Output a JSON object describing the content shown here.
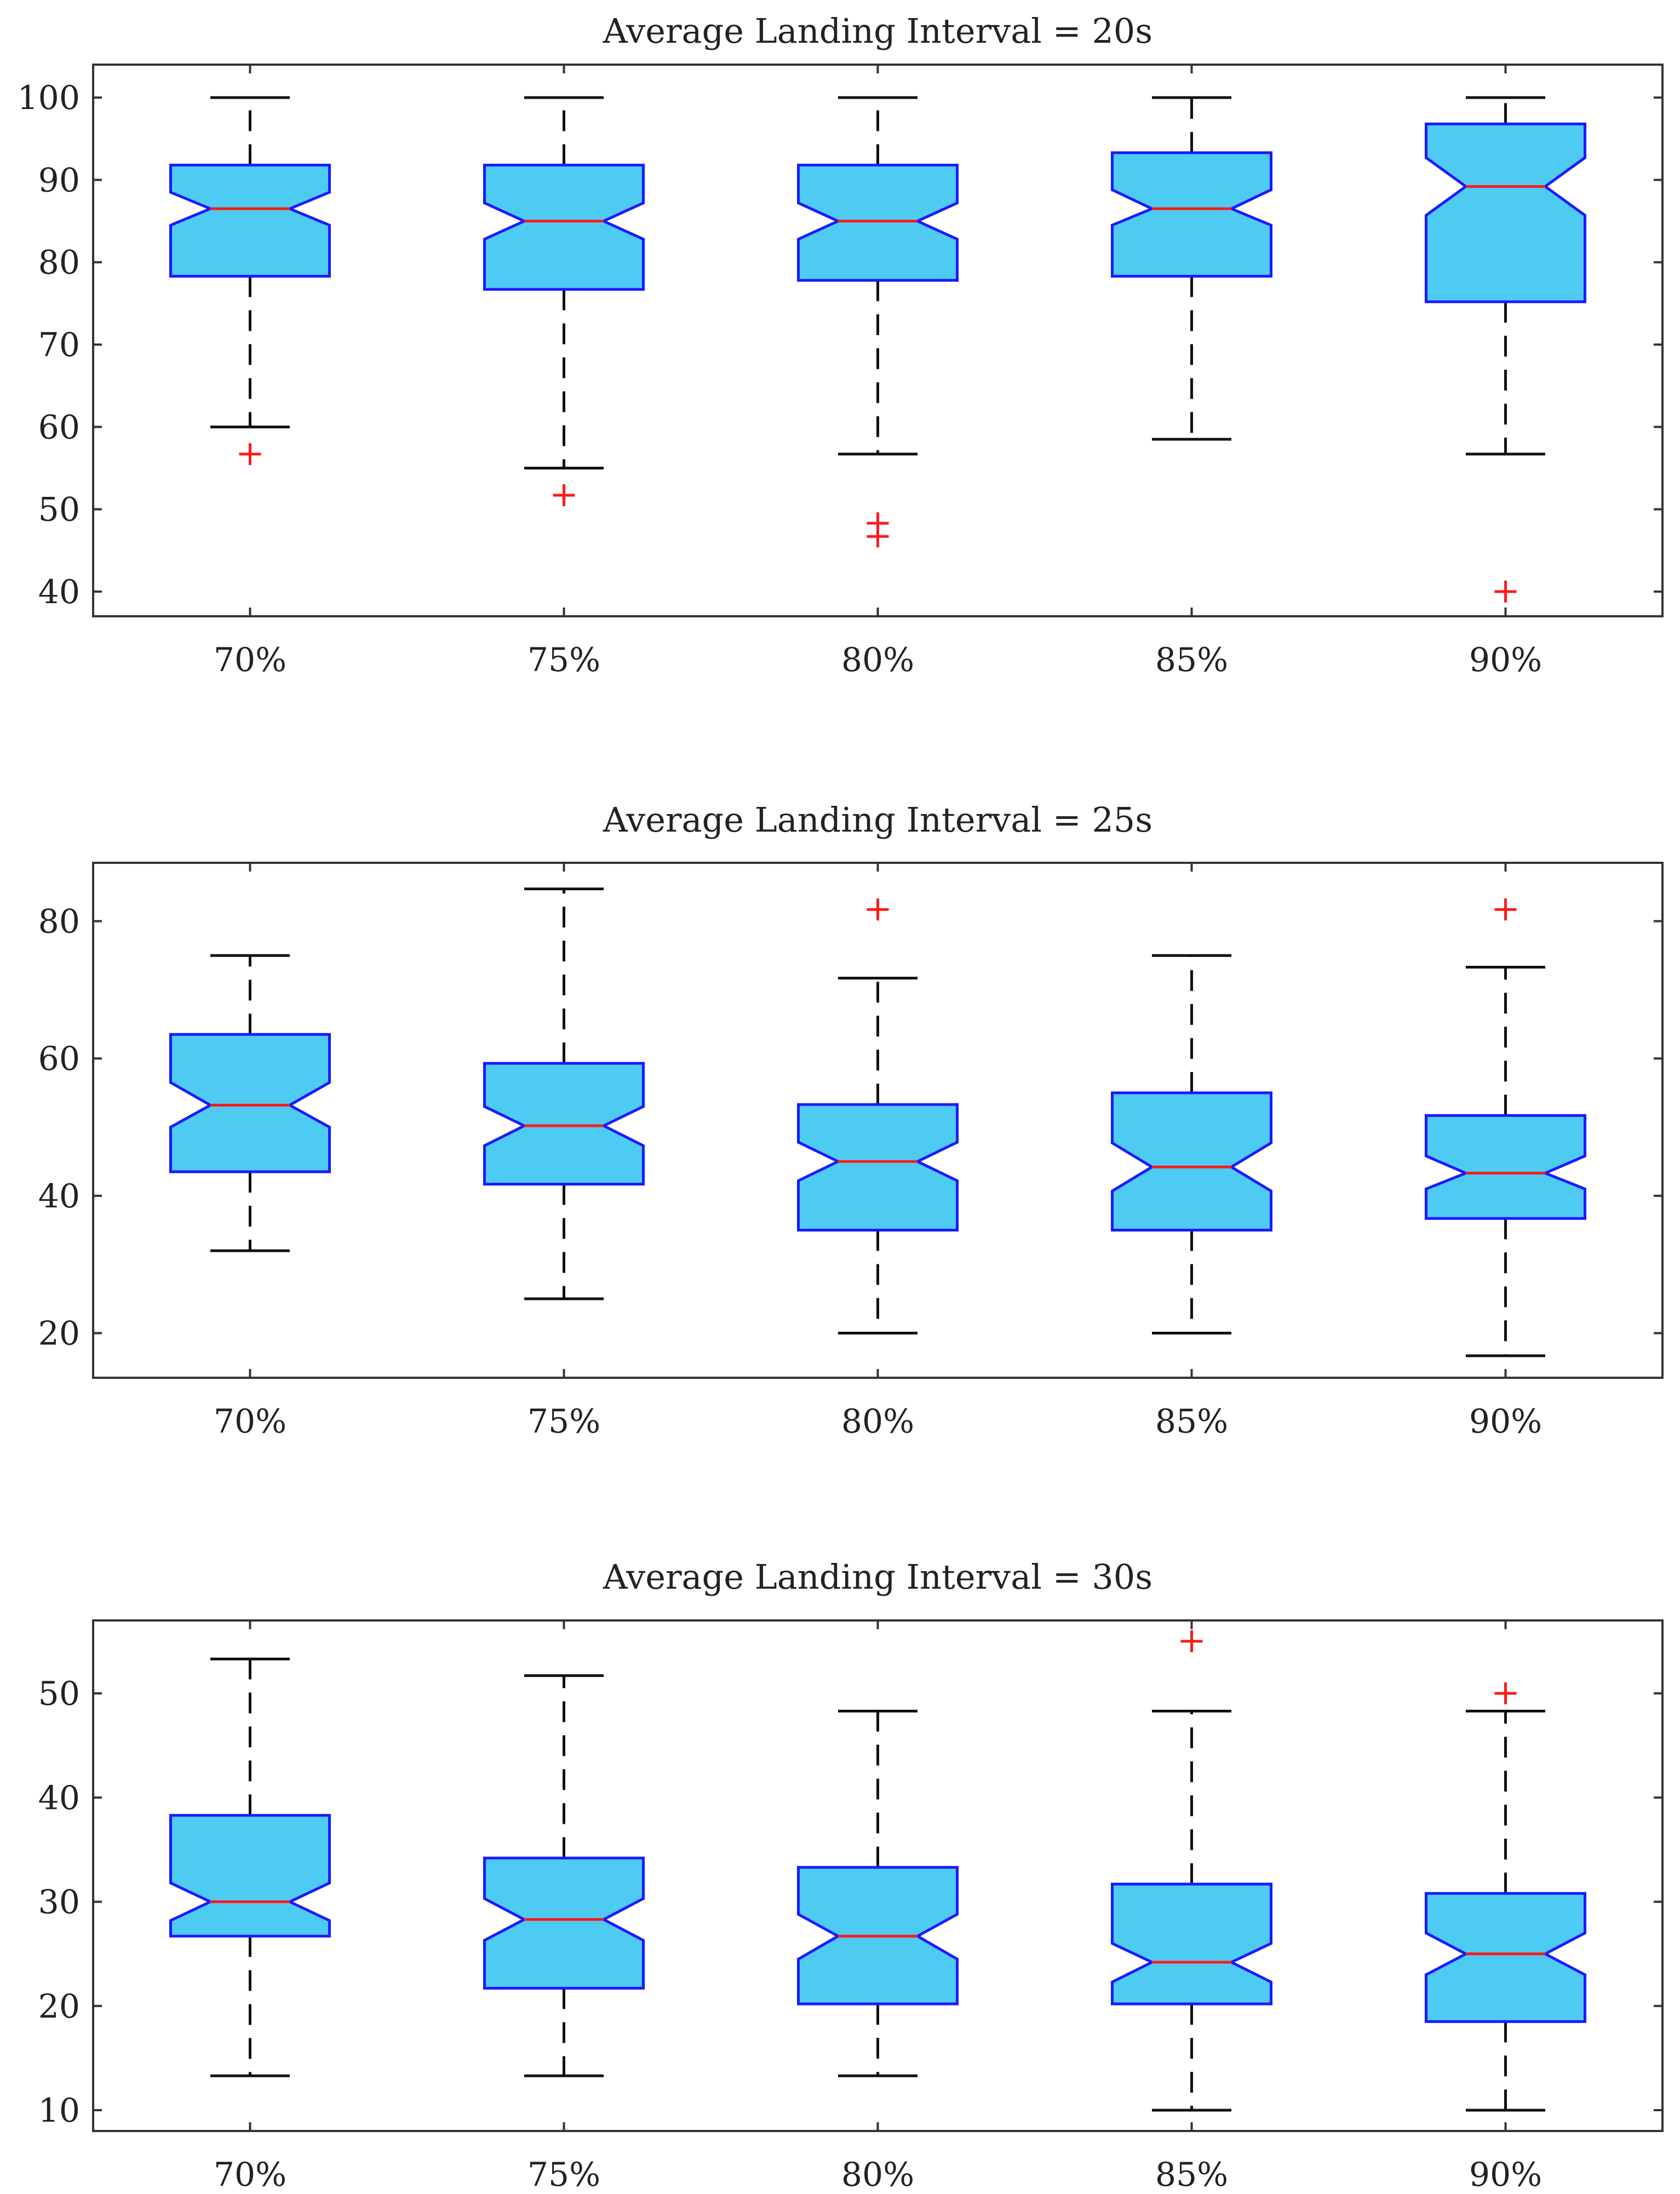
{
  "chart_data": [
    {
      "type": "boxplot",
      "title": "Average Landing Interval = 20s",
      "categories": [
        "70%",
        "75%",
        "80%",
        "85%",
        "90%"
      ],
      "yticks": [
        40,
        50,
        60,
        70,
        80,
        90,
        100
      ],
      "ylim": [
        37,
        104
      ],
      "boxes": [
        {
          "category": "70%",
          "whisker_low": 60,
          "q1": 78.3,
          "median": 86.5,
          "q3": 91.8,
          "whisker_high": 100,
          "notch_low": 84.5,
          "notch_high": 88.5,
          "outliers": [
            56.7
          ]
        },
        {
          "category": "75%",
          "whisker_low": 55,
          "q1": 76.7,
          "median": 85.0,
          "q3": 91.8,
          "whisker_high": 100,
          "notch_low": 82.8,
          "notch_high": 87.2,
          "outliers": [
            51.7
          ]
        },
        {
          "category": "80%",
          "whisker_low": 56.7,
          "q1": 77.8,
          "median": 85.0,
          "q3": 91.8,
          "whisker_high": 100,
          "notch_low": 82.8,
          "notch_high": 87.2,
          "outliers": [
            48.3,
            46.7
          ]
        },
        {
          "category": "85%",
          "whisker_low": 58.5,
          "q1": 78.3,
          "median": 86.5,
          "q3": 93.3,
          "whisker_high": 100,
          "notch_low": 84.5,
          "notch_high": 88.8,
          "outliers": []
        },
        {
          "category": "90%",
          "whisker_low": 56.7,
          "q1": 75.2,
          "median": 89.2,
          "q3": 96.8,
          "whisker_high": 100,
          "notch_low": 85.7,
          "notch_high": 92.7,
          "outliers": [
            40
          ]
        }
      ]
    },
    {
      "type": "boxplot",
      "title": "Average Landing Interval = 25s",
      "categories": [
        "70%",
        "75%",
        "80%",
        "85%",
        "90%"
      ],
      "yticks": [
        20,
        40,
        60,
        80
      ],
      "ylim": [
        13.5,
        88.5
      ],
      "boxes": [
        {
          "category": "70%",
          "whisker_low": 32,
          "q1": 43.5,
          "median": 53.2,
          "q3": 63.5,
          "whisker_high": 75,
          "notch_low": 50.0,
          "notch_high": 56.5,
          "outliers": []
        },
        {
          "category": "75%",
          "whisker_low": 25,
          "q1": 41.7,
          "median": 50.2,
          "q3": 59.3,
          "whisker_high": 84.7,
          "notch_low": 47.3,
          "notch_high": 53.0,
          "outliers": []
        },
        {
          "category": "80%",
          "whisker_low": 20,
          "q1": 35,
          "median": 45,
          "q3": 53.3,
          "whisker_high": 71.7,
          "notch_low": 42.2,
          "notch_high": 47.8,
          "outliers": [
            81.7
          ]
        },
        {
          "category": "85%",
          "whisker_low": 20,
          "q1": 35,
          "median": 44.2,
          "q3": 55,
          "whisker_high": 75,
          "notch_low": 40.7,
          "notch_high": 47.7,
          "outliers": []
        },
        {
          "category": "90%",
          "whisker_low": 16.7,
          "q1": 36.7,
          "median": 43.3,
          "q3": 51.7,
          "whisker_high": 73.3,
          "notch_low": 41.0,
          "notch_high": 45.8,
          "outliers": [
            81.7
          ]
        }
      ]
    },
    {
      "type": "boxplot",
      "title": "Average Landing Interval = 30s",
      "categories": [
        "70%",
        "75%",
        "80%",
        "85%",
        "90%"
      ],
      "yticks": [
        10,
        20,
        30,
        40,
        50
      ],
      "ylim": [
        8,
        57
      ],
      "boxes": [
        {
          "category": "70%",
          "whisker_low": 13.3,
          "q1": 26.7,
          "median": 30,
          "q3": 38.3,
          "whisker_high": 53.3,
          "notch_low": 28.2,
          "notch_high": 31.8,
          "outliers": []
        },
        {
          "category": "75%",
          "whisker_low": 13.3,
          "q1": 21.7,
          "median": 28.3,
          "q3": 34.2,
          "whisker_high": 51.7,
          "notch_low": 26.3,
          "notch_high": 30.3,
          "outliers": []
        },
        {
          "category": "80%",
          "whisker_low": 13.3,
          "q1": 20.2,
          "median": 26.7,
          "q3": 33.3,
          "whisker_high": 48.3,
          "notch_low": 24.5,
          "notch_high": 28.8,
          "outliers": []
        },
        {
          "category": "85%",
          "whisker_low": 10,
          "q1": 20.2,
          "median": 24.2,
          "q3": 31.7,
          "whisker_high": 48.3,
          "notch_low": 22.3,
          "notch_high": 26.0,
          "outliers": [
            55
          ]
        },
        {
          "category": "90%",
          "whisker_low": 10,
          "q1": 18.5,
          "median": 25.0,
          "q3": 30.8,
          "whisker_high": 48.3,
          "notch_low": 23.0,
          "notch_high": 27.0,
          "outliers": [
            50
          ]
        }
      ]
    }
  ]
}
